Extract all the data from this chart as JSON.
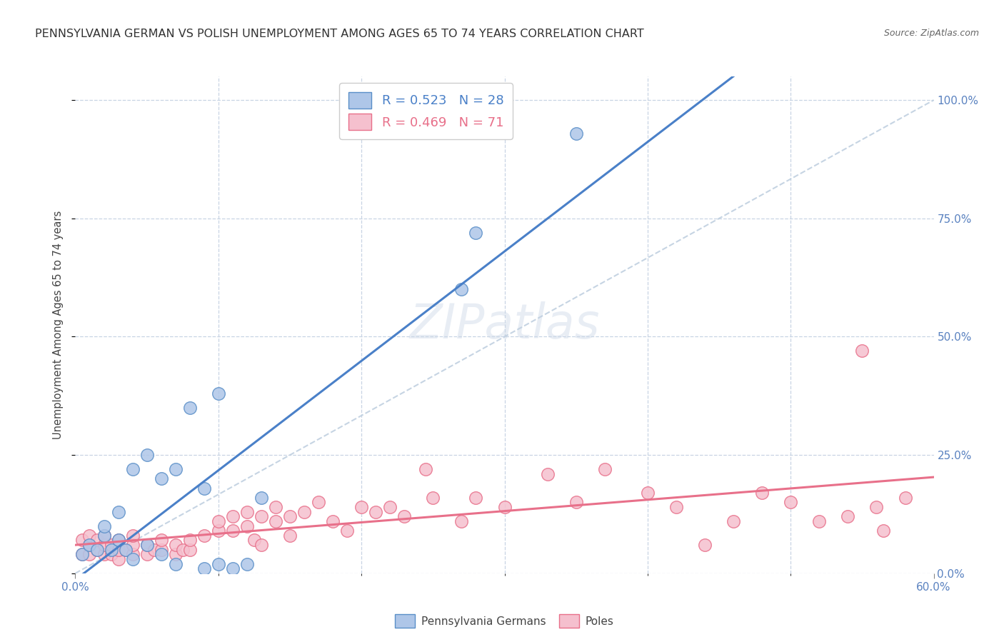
{
  "title": "PENNSYLVANIA GERMAN VS POLISH UNEMPLOYMENT AMONG AGES 65 TO 74 YEARS CORRELATION CHART",
  "source": "Source: ZipAtlas.com",
  "ylabel": "Unemployment Among Ages 65 to 74 years",
  "ylabel_right_ticks": [
    "0.0%",
    "25.0%",
    "50.0%",
    "75.0%",
    "100.0%"
  ],
  "ylabel_right_vals": [
    0.0,
    0.25,
    0.5,
    0.75,
    1.0
  ],
  "legend_blue_label": "R = 0.523   N = 28",
  "legend_pink_label": "R = 0.469   N = 71",
  "legend_label_blue": "Pennsylvania Germans",
  "legend_label_pink": "Poles",
  "blue_color": "#aec6e8",
  "blue_edge": "#5a8fc8",
  "pink_color": "#f5c0ce",
  "pink_edge": "#e8708a",
  "blue_line_color": "#4a80c8",
  "pink_line_color": "#e8708a",
  "diag_line_color": "#c0d0e0",
  "background_color": "#ffffff",
  "xlim": [
    0.0,
    0.6
  ],
  "ylim": [
    0.0,
    1.05
  ],
  "blue_points_x": [
    0.005,
    0.01,
    0.015,
    0.02,
    0.02,
    0.025,
    0.03,
    0.03,
    0.035,
    0.04,
    0.04,
    0.05,
    0.05,
    0.06,
    0.06,
    0.07,
    0.07,
    0.08,
    0.09,
    0.09,
    0.1,
    0.1,
    0.11,
    0.12,
    0.13,
    0.27,
    0.28,
    0.35
  ],
  "blue_points_y": [
    0.04,
    0.06,
    0.05,
    0.08,
    0.1,
    0.05,
    0.07,
    0.13,
    0.05,
    0.03,
    0.22,
    0.06,
    0.25,
    0.2,
    0.04,
    0.02,
    0.22,
    0.35,
    0.01,
    0.18,
    0.02,
    0.38,
    0.01,
    0.02,
    0.16,
    0.6,
    0.72,
    0.93
  ],
  "pink_points_x": [
    0.005,
    0.005,
    0.01,
    0.01,
    0.01,
    0.015,
    0.015,
    0.02,
    0.02,
    0.02,
    0.025,
    0.025,
    0.03,
    0.03,
    0.03,
    0.035,
    0.04,
    0.04,
    0.04,
    0.05,
    0.05,
    0.055,
    0.06,
    0.06,
    0.07,
    0.07,
    0.075,
    0.08,
    0.08,
    0.09,
    0.1,
    0.1,
    0.11,
    0.11,
    0.12,
    0.12,
    0.125,
    0.13,
    0.13,
    0.14,
    0.14,
    0.15,
    0.15,
    0.16,
    0.17,
    0.18,
    0.19,
    0.2,
    0.21,
    0.22,
    0.23,
    0.245,
    0.25,
    0.27,
    0.28,
    0.3,
    0.33,
    0.35,
    0.37,
    0.4,
    0.42,
    0.44,
    0.46,
    0.48,
    0.5,
    0.52,
    0.54,
    0.56,
    0.565,
    0.58,
    0.55
  ],
  "pink_points_y": [
    0.04,
    0.07,
    0.04,
    0.06,
    0.08,
    0.05,
    0.07,
    0.04,
    0.06,
    0.08,
    0.04,
    0.06,
    0.03,
    0.05,
    0.07,
    0.05,
    0.04,
    0.06,
    0.08,
    0.04,
    0.06,
    0.05,
    0.05,
    0.07,
    0.04,
    0.06,
    0.05,
    0.05,
    0.07,
    0.08,
    0.09,
    0.11,
    0.09,
    0.12,
    0.1,
    0.13,
    0.07,
    0.06,
    0.12,
    0.11,
    0.14,
    0.12,
    0.08,
    0.13,
    0.15,
    0.11,
    0.09,
    0.14,
    0.13,
    0.14,
    0.12,
    0.22,
    0.16,
    0.11,
    0.16,
    0.14,
    0.21,
    0.15,
    0.22,
    0.17,
    0.14,
    0.06,
    0.11,
    0.17,
    0.15,
    0.11,
    0.12,
    0.14,
    0.09,
    0.16,
    0.47
  ]
}
